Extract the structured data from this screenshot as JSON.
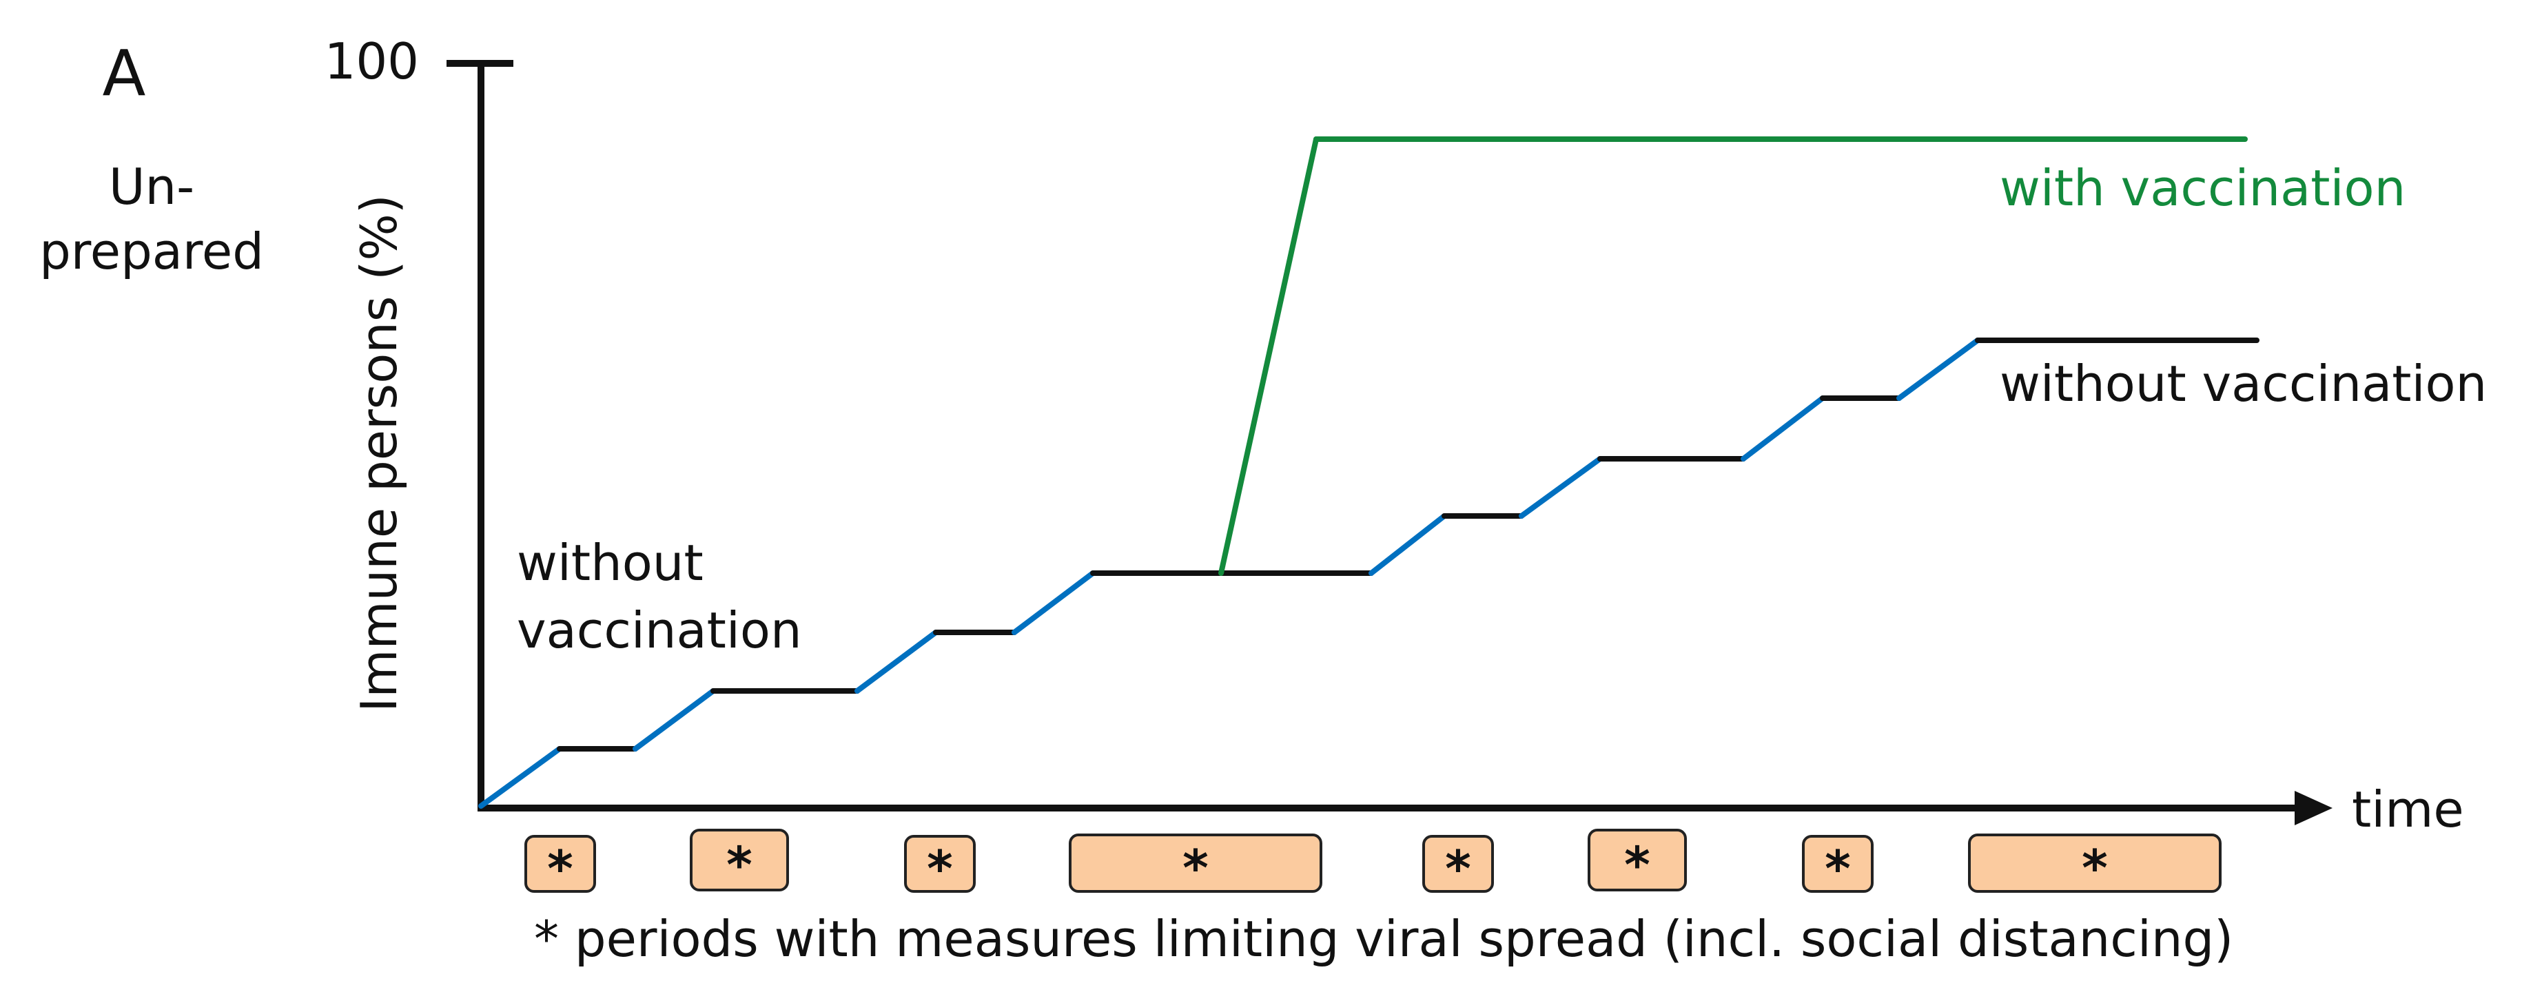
{
  "panel_label": "A",
  "corner_label": [
    "Un-",
    "prepared"
  ],
  "y_axis": {
    "label": "Immune persons (%)",
    "top_tick_label": "100"
  },
  "x_axis": {
    "label": "time"
  },
  "annotations": {
    "with_vaccination": "with vaccination",
    "without_vaccination_right": "without vaccination",
    "without_vaccination_left": [
      "without",
      "vaccination"
    ]
  },
  "legend": {
    "text": "* periods with measures limiting viral spread (incl. social distancing)"
  },
  "period_marker": "*",
  "period_count": 8,
  "colors": {
    "rise": "#0070c0",
    "plateau": "#111111",
    "vaccination": "#138a3c",
    "period_fill": "#fbcb9f",
    "axis": "#111111"
  }
}
